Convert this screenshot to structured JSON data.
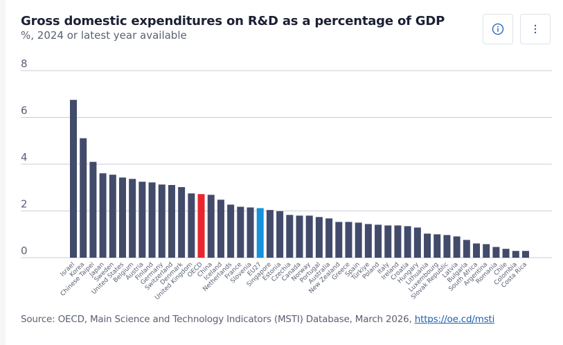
{
  "header": {
    "title": "Gross domestic expenditures on R&D as a percentage of GDP",
    "subtitle": "%, 2024 or latest year available",
    "info_button": "info-icon",
    "menu_button": "more-vertical-icon"
  },
  "footer": {
    "source_text": "Source: OECD, Main Science and Technology Indicators (MSTI) Database, March 2026, ",
    "link_text": "https://oe.cd/msti"
  },
  "colors": {
    "default_bar": "#434b6b",
    "oecd_highlight": "#e8262d",
    "eu27_highlight": "#1592dc",
    "gridline": "#c8ccd4",
    "tick_text": "#5a6072",
    "label_text": "#5a6072"
  },
  "chart_data": {
    "type": "bar",
    "title": "Gross domestic expenditures on R&D as a percentage of GDP",
    "subtitle": "%, 2024 or latest year available",
    "xlabel": "",
    "ylabel": "",
    "ylim": [
      0,
      8
    ],
    "yticks": [
      0,
      2,
      4,
      6,
      8
    ],
    "grid": true,
    "legend": "none",
    "categories": [
      "Israel",
      "Korea",
      "Chinese Taipei",
      "Japan",
      "Sweden",
      "United States",
      "Belgium",
      "Austria",
      "Finland",
      "Germany",
      "Switzerland",
      "Denmark",
      "United Kingdom",
      "OECD",
      "China",
      "Iceland",
      "Netherlands",
      "France",
      "Slovenia",
      "EU27",
      "Singapore",
      "Estonia",
      "Czechia",
      "Canada",
      "Norway",
      "Portugal",
      "Australia",
      "New Zealand",
      "Greece",
      "Spain",
      "Türkiye",
      "Poland",
      "Italy",
      "Ireland",
      "Croatia",
      "Hungary",
      "Lithuania",
      "Luxembourg",
      "Slovak Republic",
      "Latvia",
      "Bulgaria",
      "South Africa",
      "Argentina",
      "Romania",
      "Chile",
      "Colombia",
      "Costa Rica"
    ],
    "values": [
      6.75,
      5.11,
      4.1,
      3.61,
      3.55,
      3.43,
      3.37,
      3.25,
      3.22,
      3.13,
      3.11,
      3.02,
      2.75,
      2.72,
      2.69,
      2.48,
      2.27,
      2.18,
      2.15,
      2.12,
      2.04,
      1.99,
      1.83,
      1.8,
      1.8,
      1.74,
      1.68,
      1.53,
      1.53,
      1.5,
      1.44,
      1.41,
      1.38,
      1.38,
      1.35,
      1.29,
      1.03,
      1.0,
      0.97,
      0.91,
      0.76,
      0.61,
      0.58,
      0.46,
      0.38,
      0.29,
      0.29
    ],
    "highlights": {
      "OECD": "oecd_highlight",
      "EU27": "eu27_highlight"
    }
  }
}
